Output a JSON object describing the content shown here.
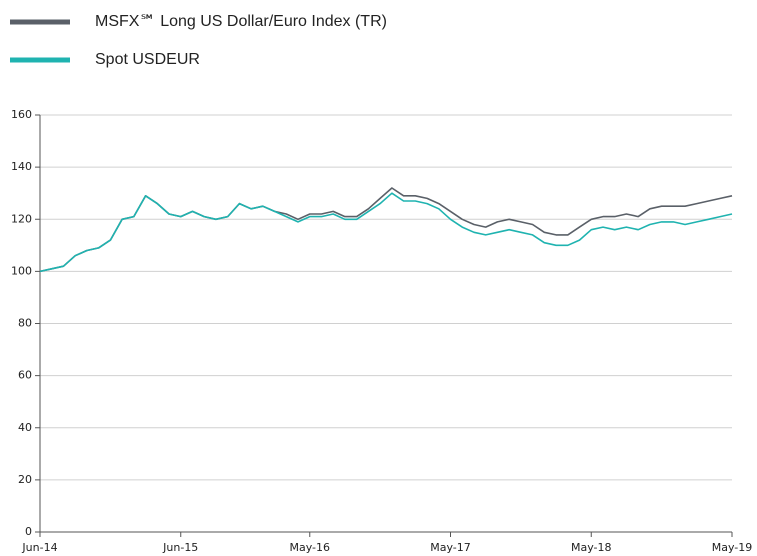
{
  "chart_data": {
    "type": "line",
    "x": [
      "Jun-14",
      "Jul-14",
      "Aug-14",
      "Sep-14",
      "Oct-14",
      "Nov-14",
      "Dec-14",
      "Jan-15",
      "Feb-15",
      "Mar-15",
      "Apr-15",
      "May-15",
      "Jun-15",
      "Jul-15",
      "Aug-15",
      "Sep-15",
      "Oct-15",
      "Nov-15",
      "Dec-15",
      "Jan-16",
      "Feb-16",
      "Mar-16",
      "Apr-16",
      "May-16",
      "Jun-16",
      "Jul-16",
      "Aug-16",
      "Sep-16",
      "Oct-16",
      "Nov-16",
      "Dec-16",
      "Jan-17",
      "Feb-17",
      "Mar-17",
      "Apr-17",
      "May-17",
      "Jun-17",
      "Jul-17",
      "Aug-17",
      "Sep-17",
      "Oct-17",
      "Nov-17",
      "Dec-17",
      "Jan-18",
      "Feb-18",
      "Mar-18",
      "Apr-18",
      "May-18",
      "Jun-18",
      "Jul-18",
      "Aug-18",
      "Sep-18",
      "Oct-18",
      "Nov-18",
      "Dec-18",
      "Jan-19",
      "Feb-19",
      "Mar-19",
      "Apr-19",
      "May-19"
    ],
    "series": [
      {
        "name": "MSFX℠ Long US Dollar/Euro Index (TR)",
        "color": "#5a6068",
        "values": [
          100,
          101,
          102,
          106,
          108,
          109,
          112,
          120,
          121,
          129,
          126,
          122,
          121,
          123,
          121,
          120,
          121,
          126,
          124,
          125,
          123,
          122,
          120,
          122,
          122,
          123,
          121,
          121,
          124,
          128,
          132,
          129,
          129,
          128,
          126,
          123,
          120,
          118,
          117,
          119,
          120,
          119,
          118,
          115,
          114,
          114,
          117,
          120,
          121,
          121,
          122,
          121,
          124,
          125,
          125,
          125,
          126,
          127,
          128,
          129
        ]
      },
      {
        "name": "Spot USDEUR",
        "color": "#1fb3b0",
        "values": [
          100,
          101,
          102,
          106,
          108,
          109,
          112,
          120,
          121,
          129,
          126,
          122,
          121,
          123,
          121,
          120,
          121,
          126,
          124,
          125,
          123,
          121,
          119,
          121,
          121,
          122,
          120,
          120,
          123,
          126,
          130,
          127,
          127,
          126,
          124,
          120,
          117,
          115,
          114,
          115,
          116,
          115,
          114,
          111,
          110,
          110,
          112,
          116,
          117,
          116,
          117,
          116,
          118,
          119,
          119,
          118,
          119,
          120,
          121,
          122
        ]
      }
    ],
    "xticks": [
      "Jun-14",
      "Jun-15",
      "May-16",
      "May-17",
      "May-18",
      "May-19"
    ],
    "ylim": [
      0,
      160
    ],
    "yticks": [
      0,
      20,
      40,
      60,
      80,
      100,
      120,
      140,
      160
    ],
    "grid": true
  }
}
